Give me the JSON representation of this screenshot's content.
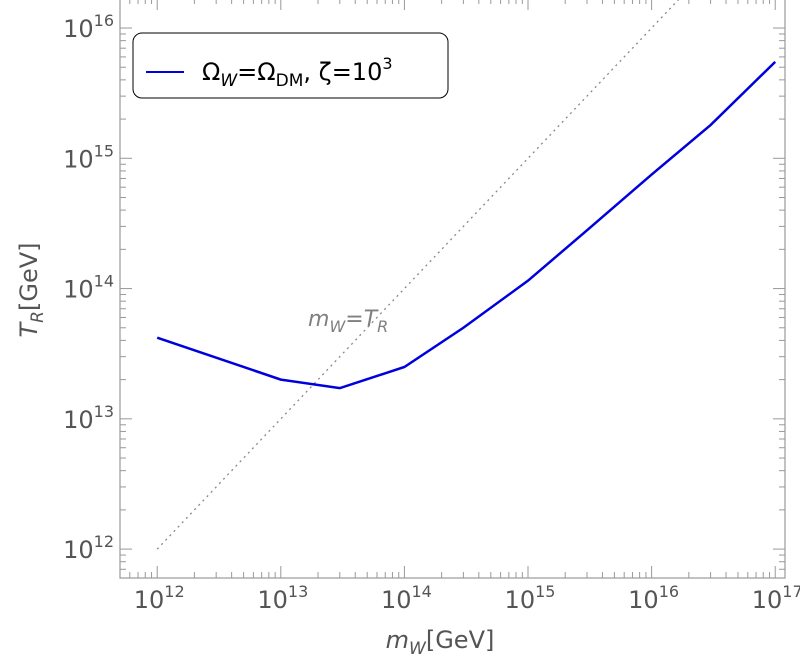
{
  "chart_data": {
    "type": "line",
    "xscale": "log",
    "yscale": "log",
    "xlim": [
      500000000000.0,
      1.2e+17
    ],
    "ylim": [
      600000000000.0,
      1.7e+16
    ],
    "xlabel_main": "m",
    "xlabel_sub": "W",
    "xlabel_unit": "[GeV]",
    "ylabel_main": "T",
    "ylabel_sub": "R",
    "ylabel_unit": "[GeV]",
    "xticks": [
      {
        "value": 1000000000000.0,
        "base": "10",
        "exp": "12"
      },
      {
        "value": 10000000000000.0,
        "base": "10",
        "exp": "13"
      },
      {
        "value": 100000000000000.0,
        "base": "10",
        "exp": "14"
      },
      {
        "value": 1000000000000000.0,
        "base": "10",
        "exp": "15"
      },
      {
        "value": 1e+16,
        "base": "10",
        "exp": "16"
      },
      {
        "value": 1e+17,
        "base": "10",
        "exp": "17"
      }
    ],
    "yticks": [
      {
        "value": 1000000000000.0,
        "base": "10",
        "exp": "12"
      },
      {
        "value": 10000000000000.0,
        "base": "10",
        "exp": "13"
      },
      {
        "value": 100000000000000.0,
        "base": "10",
        "exp": "14"
      },
      {
        "value": 1000000000000000.0,
        "base": "10",
        "exp": "15"
      },
      {
        "value": 1e+16,
        "base": "10",
        "exp": "16"
      }
    ],
    "series": [
      {
        "name": "ΩW=ΩDM, ζ=10^3",
        "color": "#0000dd",
        "style": "solid",
        "x": [
          1000000000000.0,
          10000000000000.0,
          30000000000000.0,
          100000000000000.0,
          300000000000000.0,
          1000000000000000.0,
          3000000000000000.0,
          1e+16,
          3e+16,
          1e+17
        ],
        "y": [
          42000000000000.0,
          20000000000000.0,
          17200000000000.0,
          25000000000000.0,
          50000000000000.0,
          115000000000000.0,
          280000000000000.0,
          750000000000000.0,
          1800000000000000.0,
          5500000000000000.0
        ]
      },
      {
        "name": "",
        "color": "#888888",
        "style": "dotted",
        "x": [
          1000000000000.0,
          1e+17
        ],
        "y": [
          1000000000000.0,
          1e+17
        ]
      }
    ],
    "legend": {
      "position": "top-left",
      "omega": "Ω",
      "sub_w": "W",
      "eq": "=",
      "sub_dm": "DM",
      "zeta_text": ", ζ=10",
      "zeta_exp": "3"
    },
    "annotation": {
      "m": "m",
      "sub_w": "W",
      "eq": "=",
      "t": "T",
      "sub_r": "R"
    }
  }
}
